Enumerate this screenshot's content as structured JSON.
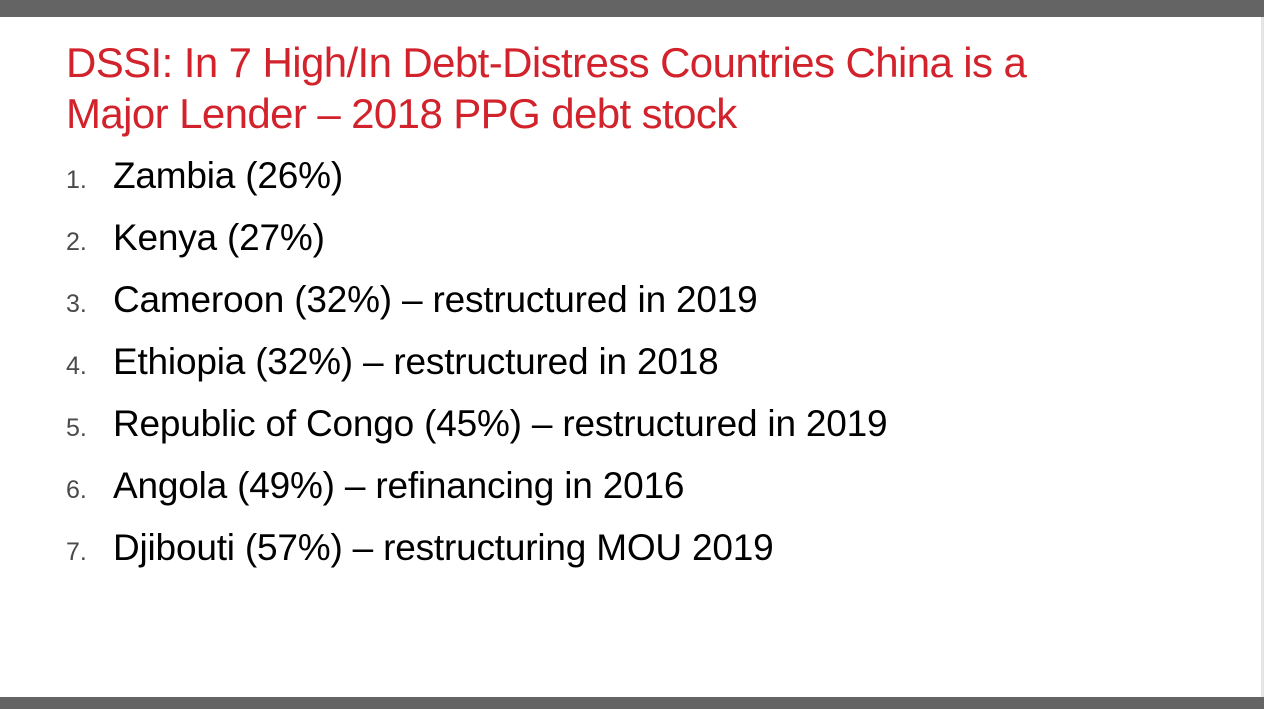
{
  "slide": {
    "title_line1": "DSSI: In 7 High/In Debt-Distress Countries China is a",
    "title_line2": "Major Lender – 2018 PPG debt stock",
    "title_color": "#d2222b",
    "items": [
      {
        "number": "1.",
        "text": "Zambia (26%)"
      },
      {
        "number": "2.",
        "text": "Kenya (27%)"
      },
      {
        "number": "3.",
        "text": "Cameroon (32%) – restructured in 2019"
      },
      {
        "number": "4.",
        "text": "Ethiopia (32%) – restructured in 2018"
      },
      {
        "number": "5.",
        "text": "Republic of Congo (45%) – restructured in 2019"
      },
      {
        "number": "6.",
        "text": "Angola (49%) – refinancing in 2016"
      },
      {
        "number": "7.",
        "text": "Djibouti (57%) – restructuring MOU 2019"
      }
    ]
  }
}
